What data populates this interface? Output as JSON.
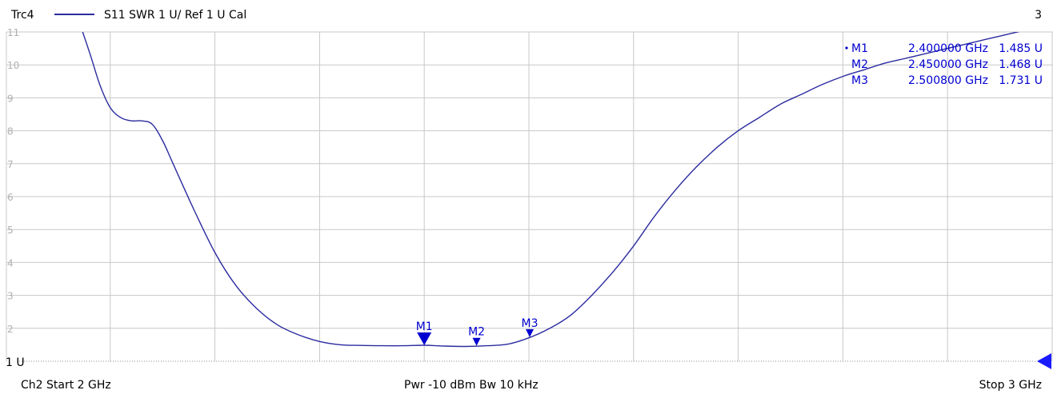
{
  "header": {
    "trace_name": "Trc4",
    "trace_info": "S11  SWR  1 U/ Ref 1 U  Cal",
    "channel_number": "3"
  },
  "footer": {
    "start": "Ch2  Start  2 GHz",
    "center": "Pwr  -10 dBm  Bw  10 kHz",
    "stop": "Stop  3 GHz",
    "ref_label": "1 U"
  },
  "colors": {
    "trace": "#2b2ba0",
    "marker": "#0000d0",
    "grid": "#c8c8c8",
    "tick_text": "#b0b0b0"
  },
  "chart_data": {
    "type": "line",
    "title": "",
    "xlabel": "",
    "ylabel": "",
    "xlim": [
      2.0,
      3.0
    ],
    "ylim": [
      1,
      11
    ],
    "grid": true,
    "y_ticks": [
      2,
      3,
      4,
      5,
      6,
      7,
      8,
      9,
      10,
      11
    ],
    "x_ticks": [
      2.0,
      2.1,
      2.2,
      2.3,
      2.4,
      2.5,
      2.6,
      2.7,
      2.8,
      2.9,
      3.0
    ],
    "series": [
      {
        "name": "Trc4",
        "x": [
          2.065,
          2.08,
          2.09,
          2.1,
          2.11,
          2.12,
          2.13,
          2.14,
          2.15,
          2.16,
          2.18,
          2.2,
          2.22,
          2.24,
          2.26,
          2.28,
          2.3,
          2.32,
          2.34,
          2.36,
          2.38,
          2.4,
          2.42,
          2.44,
          2.46,
          2.48,
          2.5,
          2.52,
          2.54,
          2.56,
          2.58,
          2.6,
          2.62,
          2.64,
          2.66,
          2.68,
          2.7,
          2.72,
          2.74,
          2.76,
          2.78,
          2.8,
          2.82,
          2.84,
          2.86,
          2.88,
          2.9,
          2.92,
          2.94,
          2.96,
          2.98,
          3.0
        ],
        "y": [
          11.8,
          10.4,
          9.4,
          8.7,
          8.4,
          8.3,
          8.3,
          8.2,
          7.7,
          7.0,
          5.6,
          4.3,
          3.3,
          2.6,
          2.1,
          1.8,
          1.6,
          1.5,
          1.48,
          1.47,
          1.47,
          1.485,
          1.46,
          1.45,
          1.47,
          1.52,
          1.71,
          2.0,
          2.4,
          3.0,
          3.7,
          4.5,
          5.4,
          6.2,
          6.9,
          7.5,
          8.0,
          8.4,
          8.8,
          9.1,
          9.4,
          9.65,
          9.85,
          10.05,
          10.2,
          10.35,
          10.5,
          10.65,
          10.8,
          10.95,
          11.1,
          11.25
        ]
      }
    ],
    "markers": [
      {
        "id": "M1",
        "label": "M1",
        "x": 2.4,
        "y": 1.485,
        "size": "large",
        "freq_text": "2.400000  GHz",
        "value_text": "1.485  U",
        "active": true
      },
      {
        "id": "M2",
        "label": "M2",
        "x": 2.45,
        "y": 1.468,
        "size": "small",
        "freq_text": "2.450000  GHz",
        "value_text": "1.468  U",
        "active": false
      },
      {
        "id": "M3",
        "label": "M3",
        "x": 2.5008,
        "y": 1.731,
        "size": "small",
        "freq_text": "2.500800  GHz",
        "value_text": "1.731  U",
        "active": false
      }
    ]
  }
}
